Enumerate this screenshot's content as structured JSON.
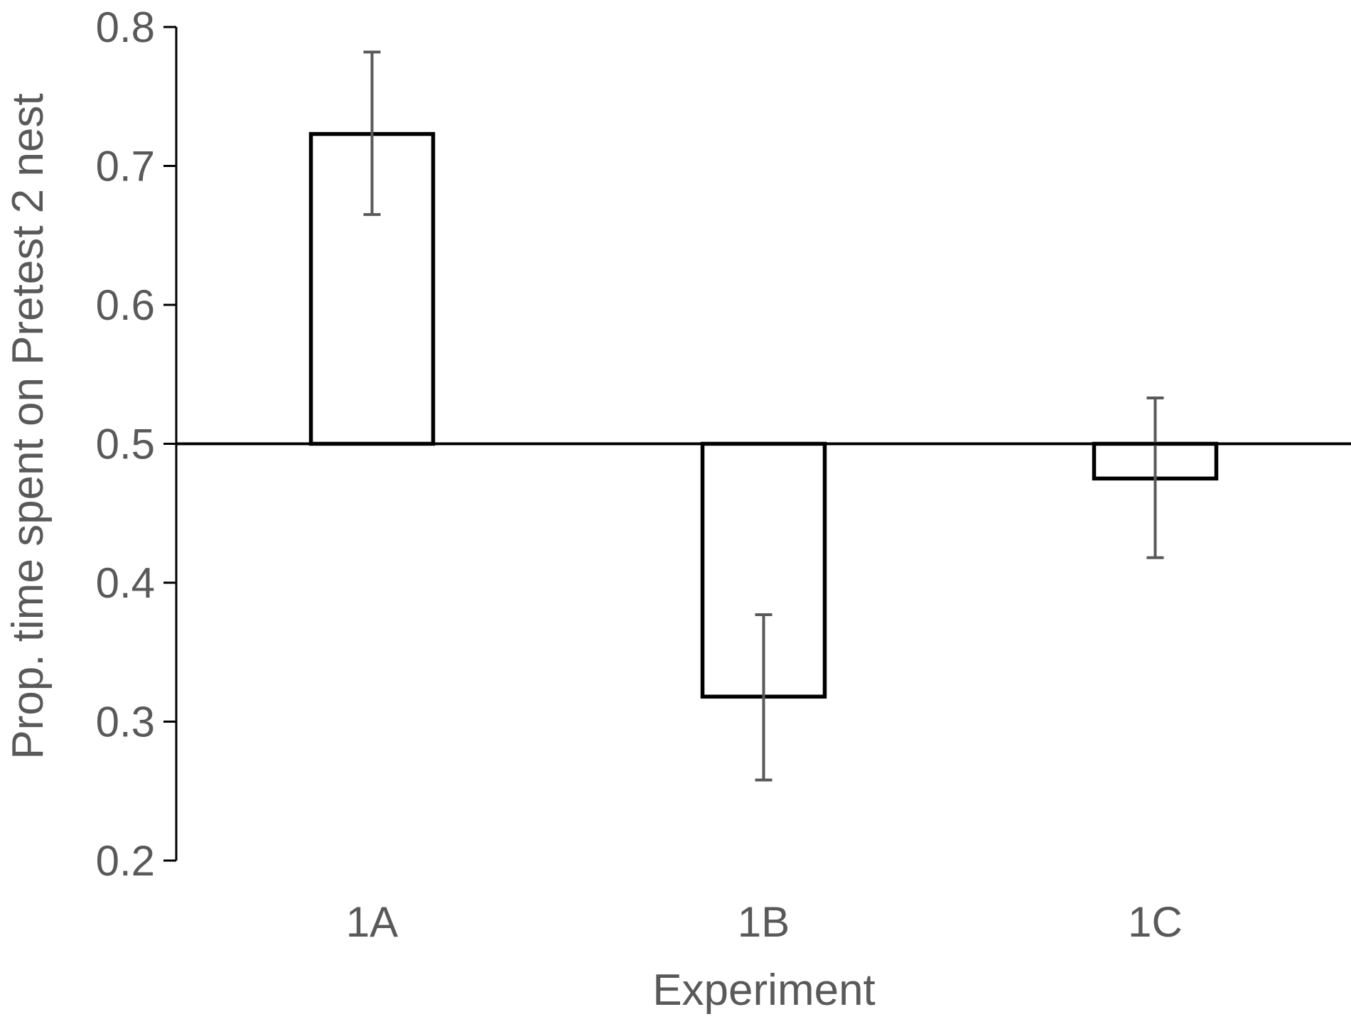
{
  "chart_data": {
    "type": "bar",
    "title": "",
    "xlabel": "Experiment",
    "ylabel": "Prop. time spent on Pretest 2 nest",
    "categories": [
      "1A",
      "1B",
      "1C"
    ],
    "values": [
      0.723,
      0.318,
      0.475
    ],
    "error_bars": {
      "upper": [
        0.782,
        0.377,
        0.533
      ],
      "lower": [
        0.665,
        0.258,
        0.418
      ]
    },
    "baseline": 0.5,
    "ylim": [
      0.2,
      0.8
    ],
    "yticks": [
      "0.2",
      "0.3",
      "0.4",
      "0.5",
      "0.6",
      "0.7",
      "0.8"
    ],
    "grid": false,
    "legend": "none",
    "colors": {
      "bar_fill": "#ffffff",
      "bar_stroke": "#000000",
      "error_bar": "#595959",
      "axis": "#000000",
      "text": "#595959"
    }
  }
}
